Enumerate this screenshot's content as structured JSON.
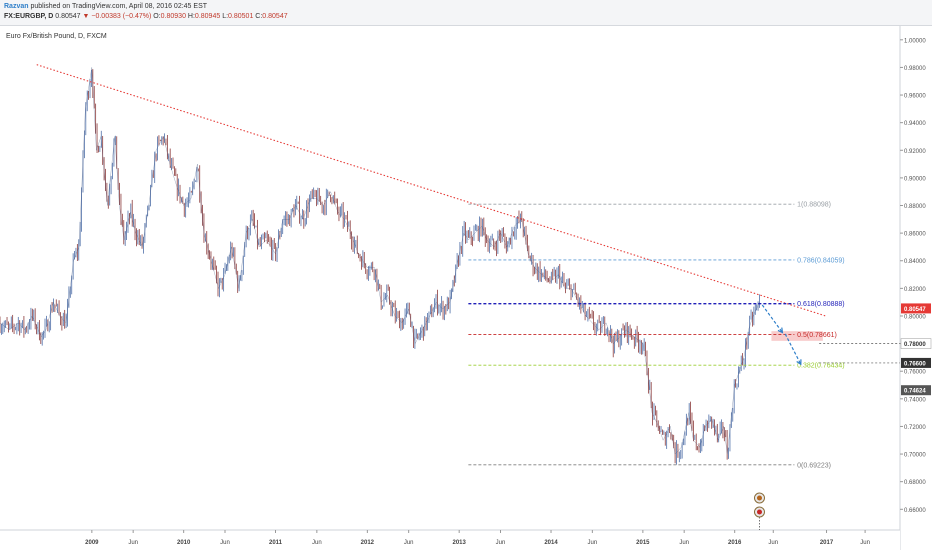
{
  "header": {
    "author": "Razvan",
    "published": "published on TradingView.com, April 08, 2016 02:45 EST",
    "symbol": "FX:EURGBP, D",
    "last": "0.80547",
    "change": "▼ −0.00383 (−0.47%)",
    "o_label": "O:",
    "o_val": "0.80930",
    "h_label": "H:",
    "h_val": "0.80945",
    "l_label": "L:",
    "l_val": "0.80501",
    "c_label": "C:",
    "c_val": "0.80547"
  },
  "chart_data": {
    "type": "line",
    "title": "Euro Fx/British Pound, D, FXCM",
    "ylim": [
      0.645,
      1.01
    ],
    "xlim": [
      2008.0,
      2017.8
    ],
    "y_ticks": [
      0.66,
      0.68,
      0.7,
      0.72,
      0.74,
      0.76,
      0.78,
      0.8,
      0.82,
      0.84,
      0.86,
      0.88,
      0.9,
      0.92,
      0.94,
      0.96,
      0.98,
      1.0
    ],
    "y_tick_labels": [
      "0.66000",
      "0.68000",
      "0.70000",
      "0.72000",
      "0.74000",
      "0.76000",
      "0.78000",
      "0.80000",
      "0.82000",
      "0.84000",
      "0.86000",
      "0.88000",
      "0.90000",
      "0.92000",
      "0.94000",
      "0.96000",
      "0.98000",
      "1.00000"
    ],
    "x_ticks": [
      {
        "x": 2009.0,
        "label": "2009",
        "bold": true
      },
      {
        "x": 2009.45,
        "label": "Jun"
      },
      {
        "x": 2010.0,
        "label": "2010",
        "bold": true
      },
      {
        "x": 2010.45,
        "label": "Jun"
      },
      {
        "x": 2011.0,
        "label": "2011",
        "bold": true
      },
      {
        "x": 2011.45,
        "label": "Jun"
      },
      {
        "x": 2012.0,
        "label": "2012",
        "bold": true
      },
      {
        "x": 2012.45,
        "label": "Jun"
      },
      {
        "x": 2013.0,
        "label": "2013",
        "bold": true
      },
      {
        "x": 2013.45,
        "label": "Jun"
      },
      {
        "x": 2014.0,
        "label": "2014",
        "bold": true
      },
      {
        "x": 2014.45,
        "label": "Jun"
      },
      {
        "x": 2015.0,
        "label": "2015",
        "bold": true
      },
      {
        "x": 2015.45,
        "label": "Jun"
      },
      {
        "x": 2016.0,
        "label": "2016",
        "bold": true
      },
      {
        "x": 2016.42,
        "label": "Jun"
      },
      {
        "x": 2017.0,
        "label": "2017",
        "bold": true
      },
      {
        "x": 2017.42,
        "label": "Jun"
      }
    ],
    "series": [
      {
        "x": [
          2008.0,
          2008.1,
          2008.2,
          2008.27,
          2008.35,
          2008.45,
          2008.5,
          2008.58,
          2008.65,
          2008.72,
          2008.8,
          2008.86,
          2008.93,
          2009.0,
          2009.05,
          2009.1,
          2009.17,
          2009.25,
          2009.3,
          2009.35,
          2009.42,
          2009.48,
          2009.55,
          2009.62,
          2009.7,
          2009.78,
          2009.85,
          2009.92,
          2010.0,
          2010.08,
          2010.15,
          2010.22,
          2010.3,
          2010.38,
          2010.45,
          2010.52,
          2010.6,
          2010.68,
          2010.75,
          2010.82,
          2010.9,
          2011.0,
          2011.08,
          2011.15,
          2011.22,
          2011.3,
          2011.38,
          2011.45,
          2011.52,
          2011.6,
          2011.68,
          2011.75,
          2011.82,
          2011.9,
          2012.0,
          2012.08,
          2012.15,
          2012.22,
          2012.3,
          2012.38,
          2012.45,
          2012.52,
          2012.6,
          2012.68,
          2012.75,
          2012.82,
          2012.9,
          2013.0,
          2013.05,
          2013.1,
          2013.17,
          2013.25,
          2013.3,
          2013.38,
          2013.45,
          2013.52,
          2013.6,
          2013.68,
          2013.75,
          2013.82,
          2013.9,
          2014.0,
          2014.08,
          2014.15,
          2014.22,
          2014.3,
          2014.38,
          2014.45,
          2014.52,
          2014.6,
          2014.68,
          2014.75,
          2014.82,
          2014.9,
          2015.0,
          2015.05,
          2015.1,
          2015.17,
          2015.22,
          2015.3,
          2015.35,
          2015.42,
          2015.5,
          2015.55,
          2015.62,
          2015.68,
          2015.75,
          2015.82,
          2015.88,
          2015.92,
          2016.0,
          2016.05,
          2016.1,
          2016.15,
          2016.2,
          2016.27
        ],
        "values": [
          0.795,
          0.79,
          0.795,
          0.79,
          0.8,
          0.785,
          0.79,
          0.81,
          0.8,
          0.795,
          0.84,
          0.85,
          0.95,
          0.98,
          0.92,
          0.93,
          0.88,
          0.93,
          0.88,
          0.855,
          0.875,
          0.86,
          0.85,
          0.88,
          0.92,
          0.93,
          0.91,
          0.895,
          0.88,
          0.885,
          0.91,
          0.86,
          0.84,
          0.82,
          0.83,
          0.85,
          0.82,
          0.86,
          0.87,
          0.85,
          0.855,
          0.845,
          0.87,
          0.87,
          0.88,
          0.87,
          0.885,
          0.885,
          0.88,
          0.89,
          0.875,
          0.87,
          0.86,
          0.845,
          0.835,
          0.835,
          0.81,
          0.815,
          0.8,
          0.795,
          0.805,
          0.78,
          0.79,
          0.8,
          0.81,
          0.805,
          0.81,
          0.845,
          0.86,
          0.855,
          0.86,
          0.865,
          0.855,
          0.85,
          0.86,
          0.85,
          0.865,
          0.87,
          0.845,
          0.835,
          0.83,
          0.825,
          0.83,
          0.82,
          0.82,
          0.81,
          0.8,
          0.795,
          0.79,
          0.795,
          0.78,
          0.785,
          0.79,
          0.785,
          0.78,
          0.76,
          0.73,
          0.72,
          0.71,
          0.72,
          0.7,
          0.705,
          0.73,
          0.71,
          0.705,
          0.72,
          0.725,
          0.71,
          0.72,
          0.7,
          0.75,
          0.76,
          0.77,
          0.79,
          0.8,
          0.81
        ]
      }
    ],
    "trendline": {
      "x": [
        2008.4,
        2016.99
      ],
      "values": [
        0.982,
        0.8
      ]
    },
    "fib_levels": [
      {
        "ratio": "1",
        "label": "1(0.88098)",
        "value": 0.88098,
        "color": "#9aa0a6",
        "x_start": 2013.1
      },
      {
        "ratio": "0.786",
        "label": "0.786(0.84059)",
        "value": 0.84059,
        "color": "#5b9bd5",
        "x_start": 2013.1
      },
      {
        "ratio": "0.618",
        "label": "0.618(0.80888)",
        "value": 0.80888,
        "color": "#1f1fb8",
        "x_start": 2013.1
      },
      {
        "ratio": "0.5",
        "label": "0.5(0.78661)",
        "value": 0.78661,
        "color": "#c62828",
        "x_start": 2013.1
      },
      {
        "ratio": "0.382",
        "label": "0.382(0.76434)",
        "value": 0.76434,
        "color": "#9acd32",
        "x_start": 2013.1
      },
      {
        "ratio": "0",
        "label": "0(0.69223)",
        "value": 0.69223,
        "color": "#7f7f7f",
        "x_start": 2013.1
      }
    ],
    "projection": [
      {
        "x": [
          2016.3,
          2016.52
        ],
        "values": [
          0.808,
          0.788
        ]
      },
      {
        "x": [
          2016.55,
          2016.72
        ],
        "values": [
          0.787,
          0.765
        ]
      }
    ],
    "target_zone": {
      "x": [
        2016.4,
        2016.96
      ],
      "values": [
        0.789,
        0.782
      ]
    },
    "price_labels": [
      {
        "text": "0.80547",
        "value": 0.80547,
        "bg": "#e53935",
        "color": "#ffffff"
      },
      {
        "text": "0.78000",
        "value": 0.78,
        "bg": "#ffffff",
        "color": "#333333"
      },
      {
        "text": "0.76600",
        "value": 0.766,
        "bg": "#333333",
        "color": "#ffffff"
      },
      {
        "text": "0.74624",
        "value": 0.74624,
        "bg": "#555555",
        "color": "#ffffff"
      }
    ],
    "legend": "none",
    "grid": false
  },
  "colors": {
    "candle_up": "#4f6fa8",
    "candle_down": "#8b3a3a",
    "trendline": "#e53935"
  }
}
